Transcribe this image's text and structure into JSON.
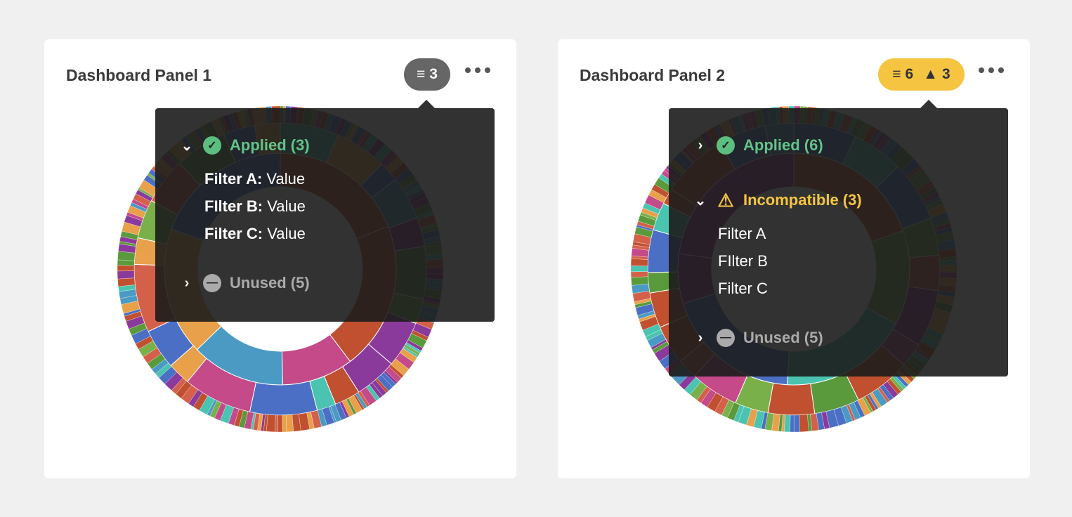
{
  "panels": [
    {
      "title": "Dashboard Panel 1",
      "badge": {
        "filter_count": "3",
        "icon": "filter-icon"
      },
      "popover": {
        "applied": "Applied (3)",
        "unused": "Unused (5)",
        "filters": [
          {
            "name": "Filter A:",
            "value": "Value"
          },
          {
            "name": "FIlter B:",
            "value": "Value"
          },
          {
            "name": "Filter C:",
            "value": "Value"
          }
        ]
      }
    },
    {
      "title": "Dashboard Panel 2",
      "badge": {
        "filter_count": "6",
        "warning_count": "3",
        "icon": "filter-icon",
        "warning_icon": "warning-icon"
      },
      "popover": {
        "applied": "Applied (6)",
        "incompatible": "Incompatible (3)",
        "unused": "Unused (5)",
        "filters": [
          "Filter A",
          "FIlter B",
          "Filter C"
        ]
      }
    }
  ],
  "colors": {
    "badge_default": "#666666",
    "badge_warning": "#f5c542",
    "applied": "#62c489",
    "incompatible": "#f5c542",
    "unused": "#aaaaaa",
    "chart_palette": [
      "#c0502f",
      "#5a9a3c",
      "#4a6fc4",
      "#8a3a9a",
      "#e8a04a",
      "#4a9ac4",
      "#d4604a",
      "#7ab04a",
      "#c44a8a",
      "#4ac4b0"
    ]
  }
}
